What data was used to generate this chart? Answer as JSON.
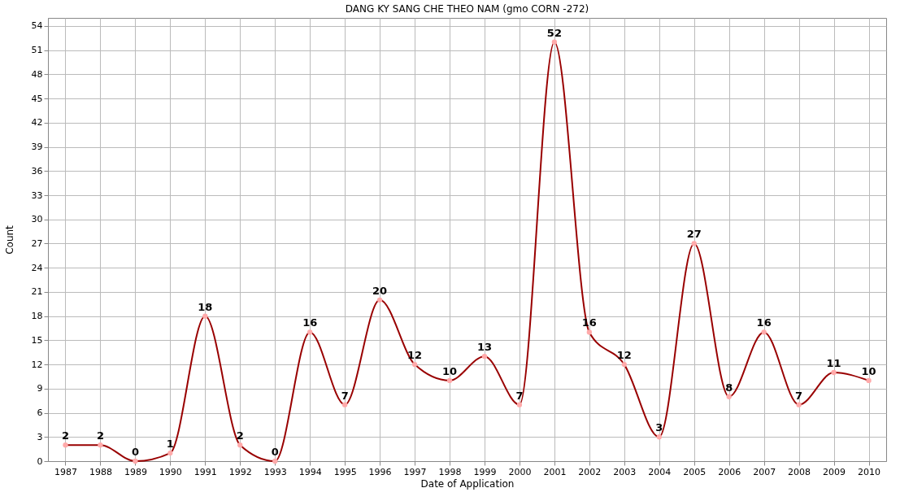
{
  "chart_data": {
    "type": "line",
    "title": "DANG KY SANG CHE THEO NAM (gmo CORN -272)",
    "xlabel": "Date of Application",
    "ylabel": "Count",
    "categories": [
      "1987",
      "1988",
      "1989",
      "1990",
      "1991",
      "1992",
      "1993",
      "1994",
      "1995",
      "1996",
      "1997",
      "1998",
      "1999",
      "2000",
      "2001",
      "2002",
      "2003",
      "2004",
      "2005",
      "2006",
      "2007",
      "2008",
      "2009",
      "2010"
    ],
    "series": [
      {
        "color": "#990000",
        "values": [
          2,
          2,
          0,
          1,
          18,
          2,
          0,
          16,
          7,
          20,
          12,
          10,
          13,
          7,
          52,
          16,
          12,
          3,
          27,
          8,
          16,
          7,
          11,
          10
        ]
      }
    ],
    "ylim": [
      0,
      55
    ],
    "yticks": [
      0,
      3,
      6,
      9,
      12,
      15,
      18,
      21,
      24,
      27,
      30,
      33,
      36,
      39,
      42,
      45,
      48,
      51,
      54
    ],
    "grid": true,
    "marker": "circle",
    "line_style": "solid",
    "data_labels": true
  }
}
